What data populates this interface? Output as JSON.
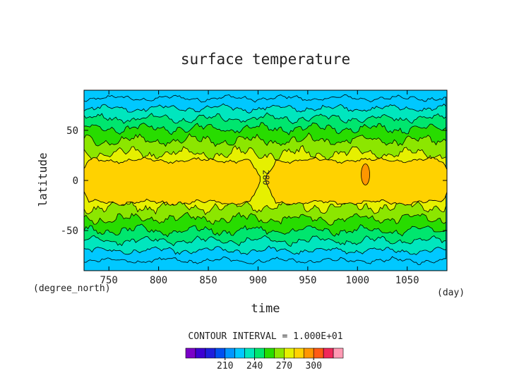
{
  "chart_data": {
    "type": "heatmap",
    "title": "surface temperature",
    "xlabel": "time",
    "ylabel": "latitude",
    "x_unit": "(day)",
    "y_unit": "(degree_north)",
    "xlim": [
      725,
      1090
    ],
    "ylim": [
      -90,
      90
    ],
    "x_ticks": [
      750,
      800,
      850,
      900,
      950,
      1000,
      1050
    ],
    "y_ticks": [
      50,
      0,
      -50
    ],
    "contour_interval_label": "CONTOUR INTERVAL = 1.000E+01",
    "contour_label": {
      "text": "280",
      "x": 905,
      "y": 3
    },
    "colorbar": {
      "levels": [
        180,
        190,
        200,
        210,
        220,
        230,
        240,
        250,
        260,
        270,
        280,
        290,
        300,
        310
      ],
      "tick_labels": [
        "210",
        "240",
        "270",
        "300"
      ],
      "tick_values": [
        210,
        240,
        270,
        300
      ],
      "colors": [
        "#7a00c8",
        "#3c00d2",
        "#1e1edc",
        "#0050f0",
        "#0096ff",
        "#00c8ff",
        "#00e6be",
        "#00e66e",
        "#28dc00",
        "#8ce600",
        "#e6f000",
        "#ffd200",
        "#ff9600",
        "#ff5a14",
        "#f0285a",
        "#ff9ab4"
      ]
    },
    "bands": [
      {
        "level": 220,
        "north": 82,
        "south": -80
      },
      {
        "level": 230,
        "north": 72,
        "south": -70
      },
      {
        "level": 240,
        "north": 62,
        "south": -60
      },
      {
        "level": 250,
        "north": 52,
        "south": -50
      },
      {
        "level": 260,
        "north": 40,
        "south": -38
      },
      {
        "level": 270,
        "north": 27,
        "south": -26
      }
    ],
    "warm_core": {
      "level": 280,
      "north": 20,
      "south": -22,
      "gap_x": 905
    },
    "hot_spot": {
      "level": 290,
      "x": 1008,
      "y": 6
    }
  }
}
